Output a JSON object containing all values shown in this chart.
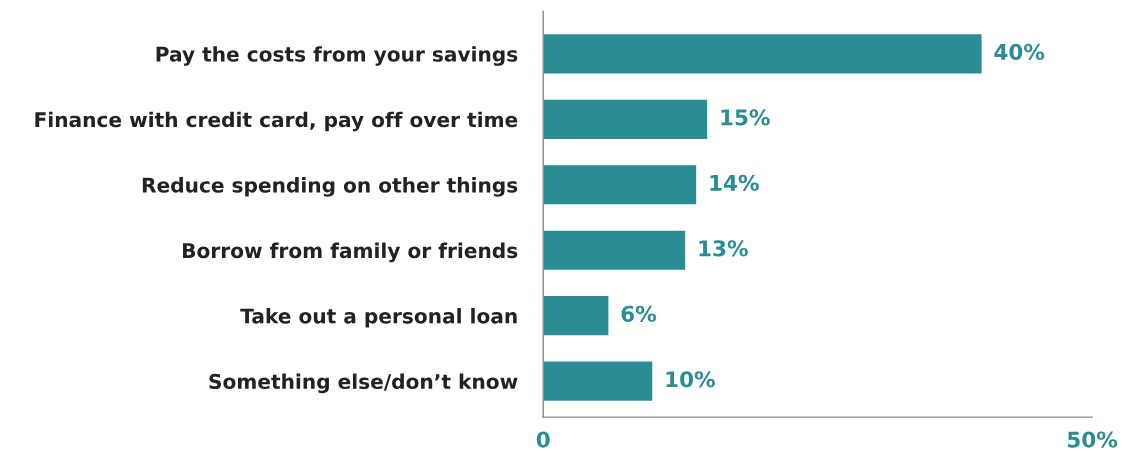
{
  "chart_data": {
    "type": "bar",
    "orientation": "horizontal",
    "categories": [
      "Pay the costs from your savings",
      "Finance with credit card, pay off over time",
      "Reduce spending on other things",
      "Borrow from family or friends",
      "Take out a personal loan",
      "Something else/don’t know"
    ],
    "values": [
      40,
      15,
      14,
      13,
      6,
      10
    ],
    "value_labels": [
      "40%",
      "15%",
      "14%",
      "13%",
      "6%",
      "10%"
    ],
    "color": "#2a8c94",
    "xlim": [
      0,
      50
    ],
    "xticks": [
      0,
      {
        "value": 50,
        "label": "50%"
      }
    ],
    "grid": false,
    "legend": false
  }
}
